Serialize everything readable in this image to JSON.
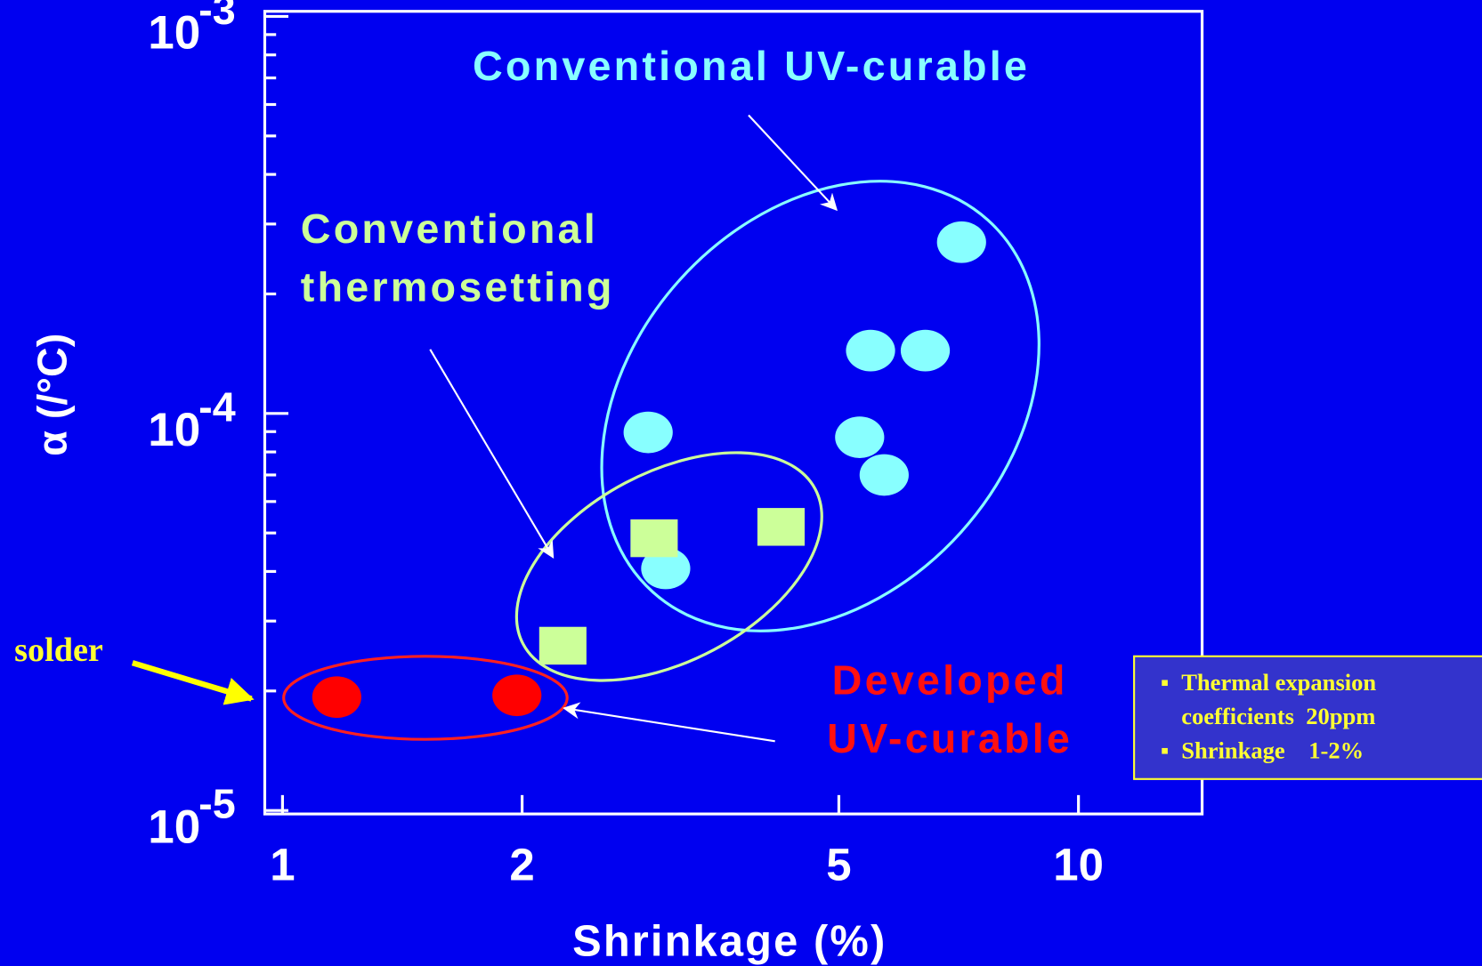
{
  "chart_data": {
    "type": "scatter",
    "x_label": "Shrinkage (%)",
    "y_label": "α (/°C)",
    "xscale": "log",
    "yscale": "log",
    "xlim": [
      0.95,
      14.3
    ],
    "ylim": [
      9.8e-06,
      0.00103
    ],
    "xticks": [
      1,
      2,
      5,
      10
    ],
    "yticks": [
      {
        "value": 0.001,
        "label": "10",
        "power": "-3"
      },
      {
        "value": 0.0001,
        "label": "10",
        "power": "-4"
      },
      {
        "value": 1e-05,
        "label": "10",
        "power": "-5"
      }
    ],
    "yminorticks": [
      2e-05,
      3e-05,
      4e-05,
      5e-05,
      6e-05,
      7e-05,
      8e-05,
      9e-05,
      0.0002,
      0.0003,
      0.0004,
      0.0005,
      0.0006,
      0.0007,
      0.0008,
      0.0009
    ],
    "series": [
      {
        "name": "Conventional UV-curable",
        "color": "#88ffff",
        "marker": "circle",
        "x": [
          7.13,
          5.48,
          6.42,
          2.88,
          5.31,
          5.7,
          3.03
        ],
        "values": [
          0.00027,
          0.000144,
          0.000144,
          8.96e-05,
          8.71e-05,
          7e-05,
          4.07e-05
        ]
      },
      {
        "name": "Conventional thermosetting",
        "color": "#ccff99",
        "marker": "square",
        "x": [
          2.93,
          4.23,
          2.25
        ],
        "values": [
          4.85e-05,
          5.18e-05,
          2.6e-05
        ]
      },
      {
        "name": "Developed UV-curable",
        "color": "#ff0000",
        "marker": "circle",
        "x": [
          1.17,
          1.97
        ],
        "values": [
          1.93e-05,
          1.95e-05
        ]
      }
    ],
    "annotation": "solder",
    "notes": [
      "Thermal expansion coefficients  20ppm",
      "Shrinkage    1-2%"
    ]
  }
}
